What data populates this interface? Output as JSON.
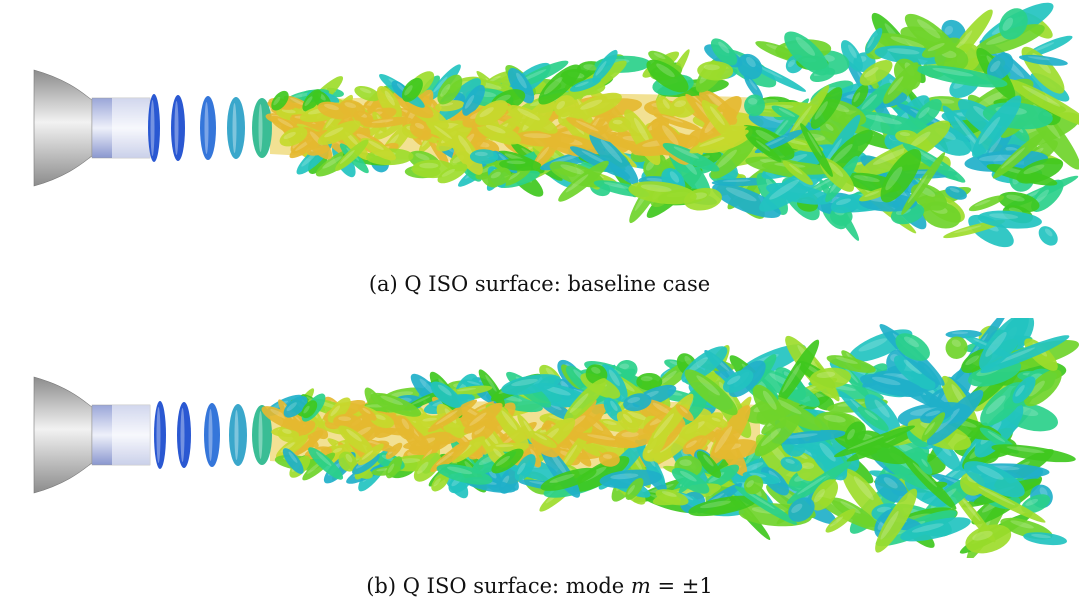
{
  "figures": [
    {
      "id": "a",
      "caption_label": "(a)",
      "caption_text": "Q ISO surface: baseline case",
      "colors": {
        "nozzle_light": "#f2f2f2",
        "nozzle_dark": "#8c8c8c",
        "jet_core": "#e8c93a",
        "vortex_green": "#3fc81e",
        "vortex_cyan": "#22c3c0",
        "ring_blue": "#1f4fd0"
      }
    },
    {
      "id": "b",
      "caption_label": "(b)",
      "caption_prefix": "Q ISO surface: mode",
      "caption_math": "m",
      "caption_suffix": "= ±1",
      "colors": {
        "nozzle_light": "#f2f2f2",
        "nozzle_dark": "#8c8c8c",
        "jet_core": "#e8c93a",
        "vortex_green": "#3fc81e",
        "vortex_cyan": "#22c3c0",
        "ring_blue": "#1f4fd0"
      }
    }
  ]
}
